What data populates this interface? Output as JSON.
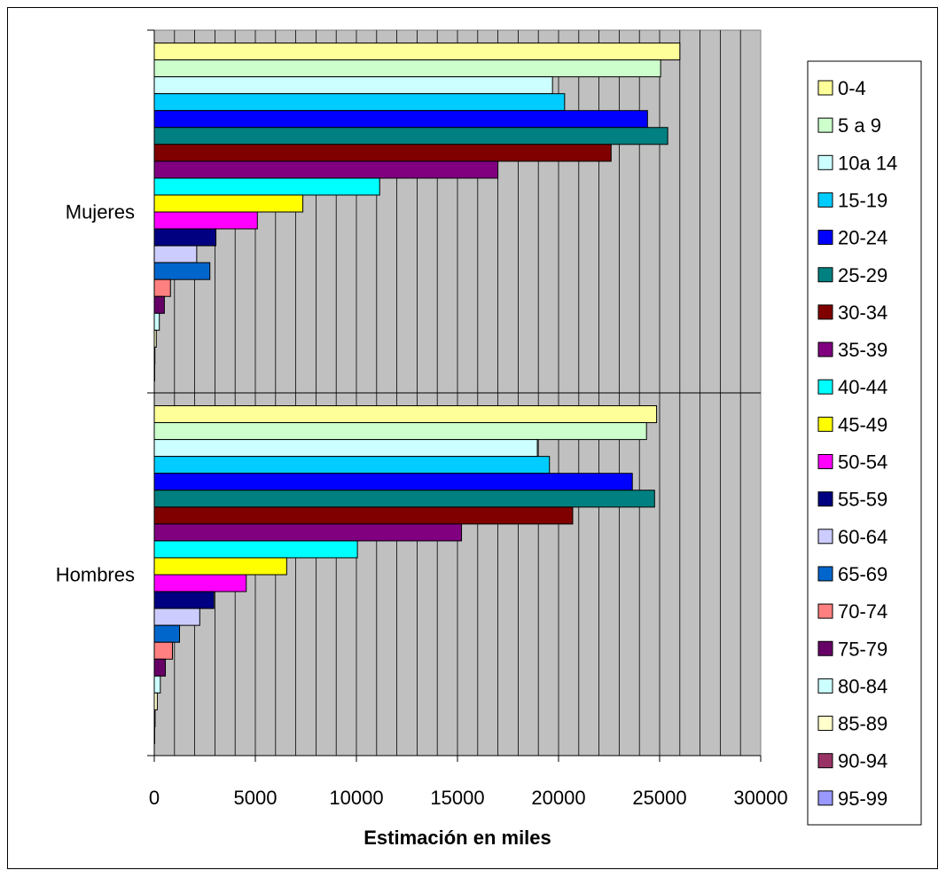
{
  "chart_data": {
    "type": "bar",
    "orientation": "horizontal",
    "xlabel": "Estimación en miles",
    "xlim": [
      0,
      30000
    ],
    "x_ticks": [
      "0",
      "5000",
      "10000",
      "15000",
      "20000",
      "25000",
      "30000"
    ],
    "categories": [
      "Mujeres",
      "Hombres"
    ],
    "plot_background": "#c0c0c0",
    "grid": "vertical",
    "legend_position": "right",
    "series": [
      {
        "name": "0-4",
        "color": "#ffff99",
        "values": [
          26000,
          24850
        ]
      },
      {
        "name": "5 a 9",
        "color": "#ccffcc",
        "values": [
          25050,
          24350
        ]
      },
      {
        "name": "10a 14",
        "color": "#ccffff",
        "values": [
          19700,
          18950
        ]
      },
      {
        "name": "15-19",
        "color": "#00ccff",
        "values": [
          20300,
          19550
        ]
      },
      {
        "name": "20-24",
        "color": "#0000ff",
        "values": [
          24400,
          23650
        ]
      },
      {
        "name": "25-29",
        "color": "#008080",
        "values": [
          25400,
          24750
        ]
      },
      {
        "name": "30-34",
        "color": "#800000",
        "values": [
          22600,
          20700
        ]
      },
      {
        "name": "35-39",
        "color": "#800080",
        "values": [
          17000,
          15200
        ]
      },
      {
        "name": "40-44",
        "color": "#00ffff",
        "values": [
          11150,
          10050
        ]
      },
      {
        "name": "45-49",
        "color": "#ffff00",
        "values": [
          7350,
          6550
        ]
      },
      {
        "name": "50-54",
        "color": "#ff00ff",
        "values": [
          5100,
          4550
        ]
      },
      {
        "name": "55-59",
        "color": "#000080",
        "values": [
          3050,
          2950
        ]
      },
      {
        "name": "60-64",
        "color": "#ccccff",
        "values": [
          2100,
          2250
        ]
      },
      {
        "name": "65-69",
        "color": "#0066cc",
        "values": [
          2750,
          1250
        ]
      },
      {
        "name": "70-74",
        "color": "#ff8080",
        "values": [
          800,
          900
        ]
      },
      {
        "name": "75-79",
        "color": "#660066",
        "values": [
          500,
          550
        ]
      },
      {
        "name": "80-84",
        "color": "#ccffff",
        "values": [
          250,
          300
        ]
      },
      {
        "name": "85-89",
        "color": "#ffffcc",
        "values": [
          100,
          150
        ]
      },
      {
        "name": "90-94",
        "color": "#993366",
        "values": [
          30,
          40
        ]
      },
      {
        "name": "95-99",
        "color": "#9999ff",
        "values": [
          5,
          8
        ]
      }
    ]
  }
}
